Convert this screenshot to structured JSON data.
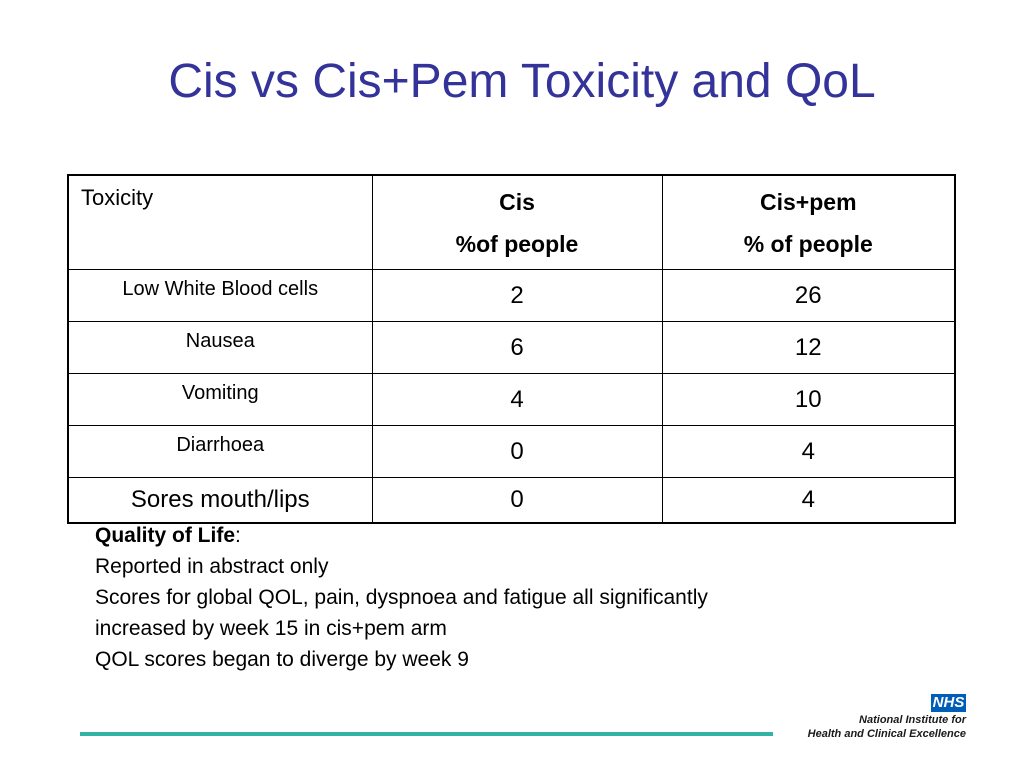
{
  "title": "Cis vs Cis+Pem Toxicity and QoL",
  "table": {
    "header": {
      "col1": "Toxicity",
      "col2_line1": "Cis",
      "col2_line2": "%of people",
      "col3_line1": "Cis+pem",
      "col3_line2": "% of people"
    },
    "rows": [
      {
        "label": "Low White Blood cells",
        "cis": "2",
        "cispem": "26"
      },
      {
        "label": "Nausea",
        "cis": "6",
        "cispem": "12"
      },
      {
        "label": "Vomiting",
        "cis": "4",
        "cispem": "10"
      },
      {
        "label": "Diarrhoea",
        "cis": "0",
        "cispem": "4"
      },
      {
        "label": "Sores mouth/lips",
        "cis": "0",
        "cispem": "4"
      }
    ]
  },
  "qol": {
    "heading": "Quality of Life",
    "heading_suffix": ":",
    "lines": [
      "Reported in abstract only",
      "Scores for global QOL, pain, dyspnoea and fatigue all significantly",
      "increased by week 15 in cis+pem arm",
      "QOL scores began to diverge by week 9"
    ]
  },
  "footer": {
    "rule_color": "#33b3a6",
    "logo_badge": "NHS",
    "logo_line1": "National Institute for",
    "logo_line2": "Health and Clinical Excellence",
    "badge_color": "#005eb8"
  },
  "colors": {
    "title": "#333399"
  }
}
